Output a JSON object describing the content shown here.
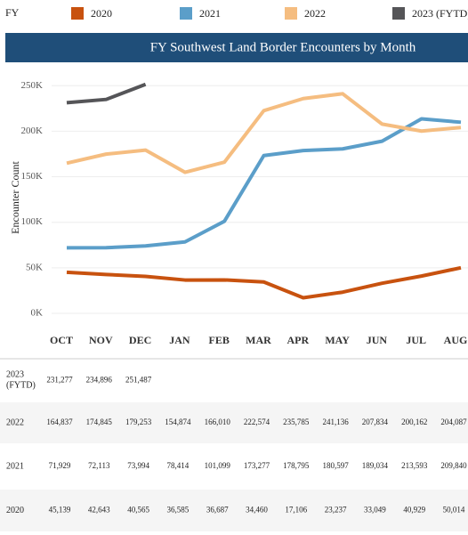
{
  "chart_data": {
    "type": "line",
    "legend_title": "FY",
    "title": "FY Southwest Land Border Encounters by Month",
    "y_label": "Encounter Count",
    "categories": [
      "OCT",
      "NOV",
      "DEC",
      "JAN",
      "FEB",
      "MAR",
      "APR",
      "MAY",
      "JUN",
      "JUL",
      "AUG"
    ],
    "ylim": [
      0,
      260000
    ],
    "yticks": [
      {
        "value": 0,
        "label": "0K"
      },
      {
        "value": 50000,
        "label": "50K"
      },
      {
        "value": 100000,
        "label": "100K"
      },
      {
        "value": 150000,
        "label": "150K"
      },
      {
        "value": 200000,
        "label": "200K"
      },
      {
        "value": 250000,
        "label": "250K"
      }
    ],
    "grid": true,
    "series": [
      {
        "name": "2020",
        "color": "#c8520f",
        "values": [
          45139,
          42643,
          40565,
          36585,
          36687,
          34460,
          17106,
          23237,
          33049,
          40929,
          50014
        ],
        "value_labels": [
          "45,139",
          "42,643",
          "40,565",
          "36,585",
          "36,687",
          "34,460",
          "17,106",
          "23,237",
          "33,049",
          "40,929",
          "50,014"
        ]
      },
      {
        "name": "2021",
        "color": "#5b9ec9",
        "values": [
          71929,
          72113,
          73994,
          78414,
          101099,
          173277,
          178795,
          180597,
          189034,
          213593,
          209840
        ],
        "value_labels": [
          "71,929",
          "72,113",
          "73,994",
          "78,414",
          "101,099",
          "173,277",
          "178,795",
          "180,597",
          "189,034",
          "213,593",
          "209,840"
        ]
      },
      {
        "name": "2022",
        "color": "#f5bd80",
        "values": [
          164837,
          174845,
          179253,
          154874,
          166010,
          222574,
          235785,
          241136,
          207834,
          200162,
          204087
        ],
        "value_labels": [
          "164,837",
          "174,845",
          "179,253",
          "154,874",
          "166,010",
          "222,574",
          "235,785",
          "241,136",
          "207,834",
          "200,162",
          "204,087"
        ]
      },
      {
        "name": "2023 (FYTD)",
        "color": "#555558",
        "values": [
          231277,
          234896,
          251487,
          null,
          null,
          null,
          null,
          null,
          null,
          null,
          null
        ],
        "value_labels": [
          "231,277",
          "234,896",
          "251,487",
          null,
          null,
          null,
          null,
          null,
          null,
          null,
          null
        ]
      }
    ]
  }
}
